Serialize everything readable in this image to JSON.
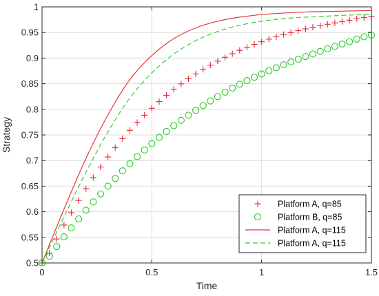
{
  "chart_data": {
    "type": "line",
    "title": "",
    "xlabel": "Time",
    "ylabel": "Strategy",
    "xlim": [
      0,
      1.5
    ],
    "ylim": [
      0.5,
      1
    ],
    "grid": true,
    "legend_position": "bottom-right",
    "x_ticks": [
      "0",
      "0.5",
      "1",
      "1.5"
    ],
    "y_ticks": [
      "0.5",
      "0.55",
      "0.6",
      "0.65",
      "0.7",
      "0.75",
      "0.8",
      "0.85",
      "0.9",
      "0.95",
      "1"
    ],
    "x": [
      0,
      0.1,
      0.2,
      0.3,
      0.4,
      0.5,
      0.6,
      0.7,
      0.8,
      0.9,
      1.0,
      1.1,
      1.2,
      1.3,
      1.4,
      1.5
    ],
    "series": [
      {
        "name": "Platform A, q=85",
        "style": "marker-plus",
        "color": "#e8323c",
        "values": [
          0.5,
          0.574,
          0.645,
          0.707,
          0.759,
          0.802,
          0.839,
          0.869,
          0.894,
          0.915,
          0.932,
          0.946,
          0.957,
          0.966,
          0.974,
          0.981
        ]
      },
      {
        "name": "Platform B, q=85",
        "style": "marker-circle",
        "color": "#22cc22",
        "values": [
          0.5,
          0.551,
          0.603,
          0.65,
          0.694,
          0.733,
          0.768,
          0.798,
          0.825,
          0.849,
          0.869,
          0.887,
          0.903,
          0.918,
          0.932,
          0.945
        ]
      },
      {
        "name": "Platform A, q=115",
        "style": "solid",
        "color": "#e8323c",
        "values": [
          0.5,
          0.605,
          0.704,
          0.789,
          0.858,
          0.905,
          0.938,
          0.959,
          0.972,
          0.98,
          0.985,
          0.988,
          0.99,
          0.991,
          0.992,
          0.993
        ]
      },
      {
        "name": "Platform A, q=115",
        "style": "dashed",
        "color": "#33cc33",
        "values": [
          0.5,
          0.59,
          0.677,
          0.756,
          0.822,
          0.871,
          0.908,
          0.934,
          0.952,
          0.964,
          0.972,
          0.977,
          0.98,
          0.982,
          0.984,
          0.985
        ]
      }
    ]
  }
}
